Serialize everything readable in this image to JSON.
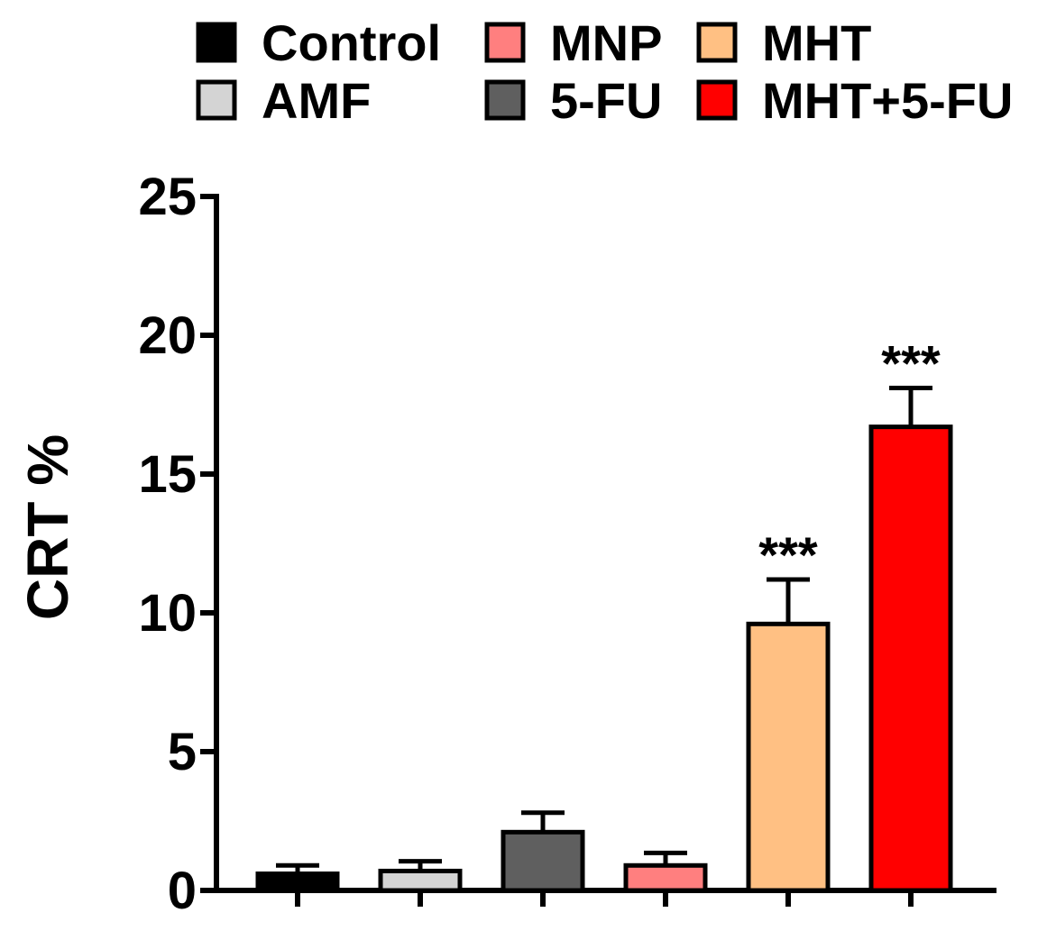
{
  "chart_data": {
    "type": "bar",
    "title": "",
    "xlabel": "",
    "ylabel": "CRT %",
    "ylim": [
      0,
      25
    ],
    "yticks": [
      0,
      5,
      10,
      15,
      20,
      25
    ],
    "ytick_labels": [
      "0",
      "5",
      "10",
      "15",
      "20",
      "25"
    ],
    "categories": [
      "Control",
      "AMF",
      "5-FU",
      "MNP",
      "MHT",
      "MHT+5-FU"
    ],
    "values": [
      0.6,
      0.7,
      2.1,
      0.9,
      9.6,
      16.7
    ],
    "errors": [
      0.3,
      0.35,
      0.7,
      0.45,
      1.6,
      1.4
    ],
    "colors": [
      "#000000",
      "#d4d4d4",
      "#5f5f5f",
      "#ff7f7f",
      "#ffc083",
      "#ff0000"
    ],
    "annotations": [
      "",
      "",
      "",
      "",
      "***",
      "***"
    ],
    "legend": {
      "placement": "top",
      "entries": [
        {
          "label": "Control",
          "color": "#000000"
        },
        {
          "label": "AMF",
          "color": "#d4d4d4"
        },
        {
          "label": "MNP",
          "color": "#ff7f7f"
        },
        {
          "label": "5-FU",
          "color": "#5f5f5f"
        },
        {
          "label": "MHT",
          "color": "#ffc083"
        },
        {
          "label": "MHT+5-FU",
          "color": "#ff0000"
        }
      ]
    },
    "grid": false
  }
}
